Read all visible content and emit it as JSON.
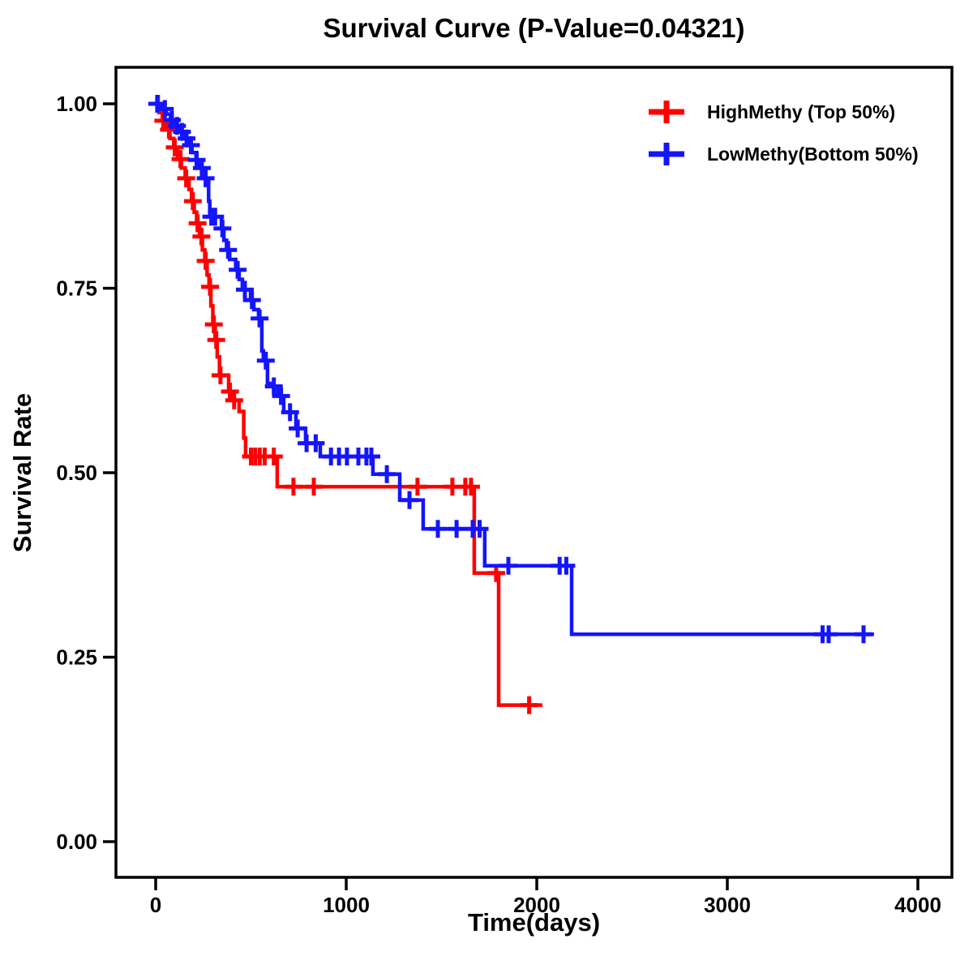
{
  "colors": {
    "high_methy": "#FF0000",
    "low_methy": "#1414FF",
    "axis": "#000000",
    "background": "#FFFFFF"
  },
  "chart_data": {
    "type": "line",
    "subtype": "kaplan_meier_step_curve",
    "title": "Survival Curve (P-Value=0.04321)",
    "p_value": "0.04321",
    "xlabel": "Time(days)",
    "ylabel": "Survival Rate",
    "xlim": [
      0,
      4000
    ],
    "ylim": [
      0.0,
      1.0
    ],
    "grid": false,
    "legend_position": "top-right",
    "x_ticks": {
      "values": [
        0,
        1000,
        2000,
        3000,
        4000
      ],
      "labels": [
        "0",
        "1000",
        "2000",
        "3000",
        "4000"
      ]
    },
    "y_ticks": {
      "values": [
        1.0,
        0.75,
        0.5,
        0.25,
        0.0
      ],
      "labels": [
        "1.00",
        "0.75",
        "0.50",
        "0.25",
        "0.00"
      ]
    },
    "series": [
      {
        "name": "HighMethy (Top 50%)",
        "color_key": "high_methy",
        "color": "#FF0000",
        "steps": [
          [
            0,
            1.0
          ],
          [
            18,
            0.988
          ],
          [
            35,
            0.977
          ],
          [
            55,
            0.965
          ],
          [
            75,
            0.953
          ],
          [
            95,
            0.941
          ],
          [
            115,
            0.925
          ],
          [
            135,
            0.913
          ],
          [
            155,
            0.899
          ],
          [
            175,
            0.884
          ],
          [
            188,
            0.868
          ],
          [
            202,
            0.853
          ],
          [
            215,
            0.838
          ],
          [
            230,
            0.82
          ],
          [
            245,
            0.802
          ],
          [
            258,
            0.787
          ],
          [
            270,
            0.768
          ],
          [
            280,
            0.752
          ],
          [
            290,
            0.726
          ],
          [
            300,
            0.701
          ],
          [
            312,
            0.68
          ],
          [
            323,
            0.657
          ],
          [
            335,
            0.632
          ],
          [
            383,
            0.61
          ],
          [
            404,
            0.598
          ],
          [
            438,
            0.583
          ],
          [
            462,
            0.547
          ],
          [
            472,
            0.522
          ],
          [
            638,
            0.481
          ],
          [
            1672,
            0.364
          ],
          [
            1800,
            0.185
          ]
        ],
        "censor_times": [
          12,
          40,
          70,
          100,
          130,
          160,
          195,
          220,
          240,
          262,
          285,
          305,
          318,
          340,
          390,
          412,
          500,
          522,
          546,
          572,
          620,
          723,
          830,
          1374,
          1557,
          1625,
          1655,
          1787,
          1960
        ],
        "end_time": 2030
      },
      {
        "name": "LowMethy(Bottom 50%)",
        "color_key": "low_methy",
        "color": "#1414FF",
        "steps": [
          [
            0,
            1.0
          ],
          [
            30,
            0.993
          ],
          [
            55,
            0.986
          ],
          [
            78,
            0.978
          ],
          [
            100,
            0.97
          ],
          [
            122,
            0.962
          ],
          [
            145,
            0.953
          ],
          [
            168,
            0.944
          ],
          [
            190,
            0.934
          ],
          [
            212,
            0.924
          ],
          [
            235,
            0.913
          ],
          [
            258,
            0.899
          ],
          [
            278,
            0.868
          ],
          [
            284,
            0.847
          ],
          [
            345,
            0.831
          ],
          [
            358,
            0.815
          ],
          [
            372,
            0.802
          ],
          [
            388,
            0.789
          ],
          [
            420,
            0.775
          ],
          [
            438,
            0.762
          ],
          [
            455,
            0.748
          ],
          [
            498,
            0.734
          ],
          [
            515,
            0.721
          ],
          [
            540,
            0.709
          ],
          [
            557,
            0.665
          ],
          [
            565,
            0.652
          ],
          [
            587,
            0.621
          ],
          [
            600,
            0.617
          ],
          [
            640,
            0.604
          ],
          [
            672,
            0.582
          ],
          [
            736,
            0.56
          ],
          [
            787,
            0.54
          ],
          [
            864,
            0.522
          ],
          [
            1140,
            0.498
          ],
          [
            1281,
            0.463
          ],
          [
            1404,
            0.424
          ],
          [
            1727,
            0.374
          ],
          [
            2183,
            0.281
          ]
        ],
        "censor_times": [
          8,
          48,
          85,
          112,
          138,
          162,
          185,
          215,
          242,
          262,
          292,
          312,
          350,
          380,
          430,
          468,
          505,
          545,
          578,
          620,
          658,
          705,
          745,
          792,
          840,
          920,
          962,
          1004,
          1064,
          1106,
          1132,
          1213,
          1332,
          1481,
          1579,
          1664,
          1700,
          1851,
          2120,
          2155,
          3500,
          3532,
          3715
        ],
        "end_time": 3770
      }
    ]
  }
}
